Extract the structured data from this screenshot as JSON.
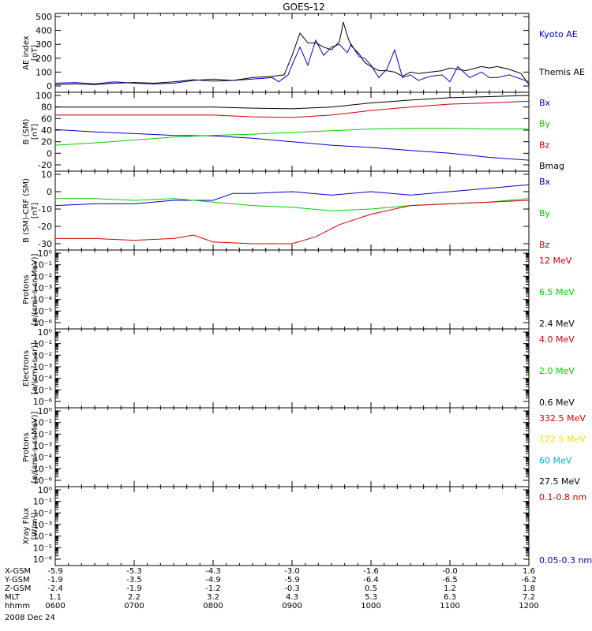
{
  "title": "GOES-12",
  "date_label": "2008 Dec 24",
  "colors": {
    "black": "#000000",
    "red": "#cc0000",
    "green": "#00cc00",
    "blue": "#0000cc",
    "yellow": "#f2e000",
    "cyan": "#00aadd"
  },
  "x_axis": {
    "rows": [
      {
        "label": "X-GSM",
        "values": [
          "-5.9",
          "-5.3",
          "-4.3",
          "-3.0",
          "-1.6",
          "-0.0",
          "1.6"
        ]
      },
      {
        "label": "Y-GSM",
        "values": [
          "-1.9",
          "-3.5",
          "-4.9",
          "-5.9",
          "-6.4",
          "-6.5",
          "-6.2"
        ]
      },
      {
        "label": "Z-GSM",
        "values": [
          "-2.4",
          "-1.9",
          "-1.2",
          "-0.3",
          "0.5",
          "1.2",
          "1.8"
        ]
      },
      {
        "label": "MLT",
        "values": [
          "1.1",
          "2.2",
          "3.2",
          "4.3",
          "5.3",
          "6.3",
          "7.2"
        ]
      },
      {
        "label": "hhmm",
        "values": [
          "0600",
          "0700",
          "0800",
          "0900",
          "1000",
          "1100",
          "1200"
        ]
      }
    ]
  },
  "chart_data": [
    {
      "type": "line",
      "ylabel": [
        "AE index",
        "[nT]"
      ],
      "ylim": [
        0,
        500
      ],
      "yticks": [
        "0",
        "100",
        "200",
        "300",
        "400",
        "500"
      ],
      "x_range": [
        6,
        12
      ],
      "series": [
        {
          "name": "Kyoto AE",
          "color": "blue",
          "x": [
            6.0,
            6.25,
            6.5,
            6.75,
            7.0,
            7.25,
            7.5,
            7.75,
            8.0,
            8.25,
            8.5,
            8.75,
            8.83,
            8.95,
            9.0,
            9.1,
            9.2,
            9.3,
            9.4,
            9.5,
            9.6,
            9.7,
            9.75,
            9.85,
            9.92,
            10.0,
            10.1,
            10.2,
            10.3,
            10.4,
            10.5,
            10.6,
            10.75,
            10.9,
            11.0,
            11.1,
            11.25,
            11.4,
            11.5,
            11.6,
            11.75,
            11.9,
            12.0
          ],
          "y": [
            20,
            25,
            15,
            30,
            20,
            15,
            20,
            40,
            50,
            40,
            50,
            60,
            30,
            80,
            150,
            280,
            150,
            330,
            220,
            280,
            300,
            240,
            300,
            210,
            200,
            150,
            60,
            120,
            260,
            60,
            80,
            40,
            70,
            80,
            30,
            140,
            60,
            100,
            60,
            60,
            80,
            50,
            30
          ]
        },
        {
          "name": "Themis AE",
          "color": "black",
          "x": [
            6.0,
            6.25,
            6.5,
            6.75,
            7.0,
            7.25,
            7.5,
            7.75,
            8.0,
            8.25,
            8.5,
            8.75,
            8.9,
            9.0,
            9.1,
            9.2,
            9.3,
            9.4,
            9.5,
            9.6,
            9.65,
            9.7,
            9.75,
            9.85,
            9.92,
            10.0,
            10.1,
            10.2,
            10.3,
            10.4,
            10.5,
            10.6,
            10.75,
            10.9,
            11.0,
            11.2,
            11.4,
            11.5,
            11.6,
            11.75,
            11.9,
            12.0
          ],
          "y": [
            10,
            15,
            10,
            20,
            25,
            20,
            30,
            45,
            35,
            40,
            60,
            70,
            80,
            220,
            380,
            310,
            310,
            280,
            260,
            320,
            460,
            360,
            290,
            230,
            170,
            140,
            110,
            110,
            100,
            70,
            100,
            90,
            100,
            110,
            130,
            110,
            140,
            130,
            140,
            120,
            90,
            10
          ]
        }
      ]
    },
    {
      "type": "line",
      "ylabel": [
        "B (SM)",
        "[nT]"
      ],
      "ylim": [
        -20,
        100
      ],
      "yticks": [
        "-20",
        "0",
        "20",
        "40",
        "60",
        "80",
        "100"
      ],
      "x_range": [
        6,
        12
      ],
      "series": [
        {
          "name": "Bx",
          "color": "blue",
          "x": [
            6,
            6.5,
            7,
            7.5,
            8,
            8.5,
            9,
            9.5,
            10,
            10.5,
            11,
            11.5,
            12
          ],
          "y": [
            41,
            37,
            34,
            31,
            30,
            26,
            20,
            14,
            10,
            5,
            0,
            -7,
            -12
          ]
        },
        {
          "name": "By",
          "color": "green",
          "x": [
            6,
            6.5,
            7,
            7.5,
            8,
            8.5,
            9,
            9.5,
            10,
            10.5,
            11,
            11.5,
            12
          ],
          "y": [
            14,
            18,
            23,
            28,
            31,
            33,
            36,
            39,
            42,
            43,
            43,
            42,
            42
          ]
        },
        {
          "name": "Bz",
          "color": "red",
          "x": [
            6,
            6.5,
            7,
            7.5,
            8,
            8.5,
            9,
            9.5,
            10,
            10.5,
            11,
            11.5,
            12
          ],
          "y": [
            66,
            66,
            66,
            66,
            66,
            63,
            62,
            66,
            74,
            80,
            85,
            87,
            90
          ]
        },
        {
          "name": "Bmag",
          "color": "black",
          "x": [
            6,
            6.5,
            7,
            7.5,
            8,
            8.5,
            9,
            9.5,
            10,
            10.5,
            11,
            11.5,
            12
          ],
          "y": [
            80,
            80,
            80,
            80,
            80,
            78,
            77,
            80,
            87,
            92,
            96,
            98,
            100
          ]
        }
      ]
    },
    {
      "type": "line",
      "ylabel": [
        "B (SM)-CRF (SM)",
        "[nT]"
      ],
      "ylim": [
        -30,
        10
      ],
      "yticks": [
        "-30",
        "-20",
        "-10",
        "0",
        "10"
      ],
      "x_range": [
        6,
        12
      ],
      "series": [
        {
          "name": "Bx",
          "color": "blue",
          "x": [
            6,
            6.5,
            7,
            7.5,
            8,
            8.25,
            8.5,
            9,
            9.5,
            10,
            10.5,
            11,
            11.5,
            12
          ],
          "y": [
            -8,
            -7,
            -7,
            -5,
            -5,
            -1,
            -1,
            0,
            -2,
            0,
            -2,
            0,
            2,
            4
          ]
        },
        {
          "name": "By",
          "color": "green",
          "x": [
            6,
            6.5,
            7,
            7.5,
            8,
            8.5,
            9,
            9.5,
            10,
            10.5,
            11,
            11.5,
            12
          ],
          "y": [
            -4,
            -4,
            -5,
            -4,
            -6,
            -8,
            -9,
            -11,
            -10,
            -8,
            -7,
            -6,
            -4
          ]
        },
        {
          "name": "Bz",
          "color": "red",
          "x": [
            6,
            6.5,
            7,
            7.5,
            7.75,
            8,
            8.5,
            9,
            9.3,
            9.6,
            10,
            10.5,
            11,
            11.5,
            12
          ],
          "y": [
            -27,
            -27,
            -28,
            -27,
            -25,
            -29,
            -30,
            -30,
            -26,
            -19,
            -13,
            -8,
            -7,
            -6,
            -5
          ]
        }
      ]
    },
    {
      "type": "line",
      "ylabel": [
        "Protons",
        "[p/(cm²-s-sr-MeV)]"
      ],
      "log_scale": true,
      "yticks": [
        "10⁰",
        "10⁻¹",
        "10⁻²",
        "10⁻³",
        "10⁻⁴",
        "10⁻⁵",
        "10⁻⁶"
      ],
      "series": [
        {
          "name": "12 MeV",
          "color": "red"
        },
        {
          "name": "6.5 MeV",
          "color": "green"
        },
        {
          "name": "2.4 MeV",
          "color": "black"
        }
      ]
    },
    {
      "type": "line",
      "ylabel": [
        "Electrons",
        "[e/(cm²-s-sr)]"
      ],
      "log_scale": true,
      "yticks": [
        "10⁰",
        "10⁻¹",
        "10⁻²",
        "10⁻³",
        "10⁻⁴",
        "10⁻⁵",
        "10⁻⁶"
      ],
      "series": [
        {
          "name": "4.0 MeV",
          "color": "red"
        },
        {
          "name": "2.0 MeV",
          "color": "green"
        },
        {
          "name": "0.6 MeV",
          "color": "black"
        }
      ]
    },
    {
      "type": "line",
      "ylabel": [
        "Protons",
        "[p/(cm²-s-sr-MeV)]"
      ],
      "log_scale": true,
      "yticks": [
        "10⁰",
        "10⁻¹",
        "10⁻²",
        "10⁻³",
        "10⁻⁴",
        "10⁻⁵",
        "10⁻⁶"
      ],
      "series": [
        {
          "name": "332.5 MeV",
          "color": "red"
        },
        {
          "name": "122.5 MeV",
          "color": "yellow"
        },
        {
          "name": "60 MeV",
          "color": "cyan"
        },
        {
          "name": "27.5 MeV",
          "color": "black"
        }
      ]
    },
    {
      "type": "line",
      "ylabel": [
        "Xray Flux",
        "[W/m²]"
      ],
      "log_scale": true,
      "yticks": [
        "10⁰",
        "10⁻¹",
        "10⁻²",
        "10⁻³",
        "10⁻⁴",
        "10⁻⁵",
        "10⁻⁶"
      ],
      "series": [
        {
          "name": "0.1-0.8 nm",
          "color": "red"
        },
        {
          "name": "0.05-0.3 nm",
          "color": "blue"
        }
      ]
    }
  ]
}
